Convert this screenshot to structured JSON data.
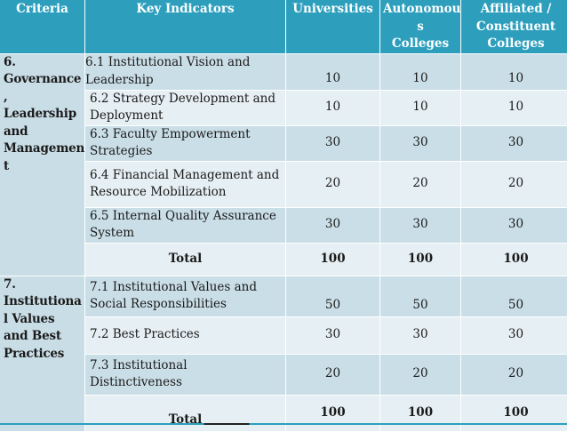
{
  "header": {
    "criteria": "Criteria",
    "indicators": "Key Indicators",
    "universities": "Universities",
    "autonomous": "Autonomou\ns\nColleges",
    "affiliated": "Affiliated /\nConstituent\nColleges"
  },
  "sections": [
    {
      "criteria": "6.\nGovernance\n,\nLeadership\nand\nManagemen\nt",
      "rows": [
        {
          "indicator": " 6.1  Institutional Vision and Leadership",
          "universities": "10",
          "autonomous": "10",
          "affiliated": "10"
        },
        {
          "indicator": "6.2  Strategy Development and Deployment",
          "universities": "10",
          "autonomous": "10",
          "affiliated": "10"
        },
        {
          "indicator": "6.3  Faculty Empowerment Strategies",
          "universities": "30",
          "autonomous": "30",
          "affiliated": "30"
        },
        {
          "indicator": "6.4  Financial Management and Resource Mobilization",
          "universities": "20",
          "autonomous": "20",
          "affiliated": "20"
        },
        {
          "indicator": "6.5  Internal Quality Assurance System",
          "universities": "30",
          "autonomous": "30",
          "affiliated": "30"
        }
      ],
      "total": {
        "label": "Total",
        "universities": "100",
        "autonomous": "100",
        "affiliated": "100"
      }
    },
    {
      "criteria": "7.\nInstitutiona\nl Values\nand Best\nPractices",
      "rows": [
        {
          "indicator": "7.1  Institutional Values and Social Responsibilities",
          "universities": "50",
          "autonomous": "50",
          "affiliated": "50"
        },
        {
          "indicator": "7.2  Best Practices",
          "universities": "30",
          "autonomous": "30",
          "affiliated": "30"
        },
        {
          "indicator": "7.3  Institutional Distinctiveness",
          "universities": "20",
          "autonomous": "20",
          "affiliated": "20"
        }
      ],
      "total": {
        "label": "Total",
        "universities": "100",
        "autonomous": "100",
        "affiliated": "100"
      }
    }
  ],
  "colors": {
    "header": "#2d9fbd",
    "row_dark": "#cadee7",
    "row_light": "#e6eff3"
  }
}
